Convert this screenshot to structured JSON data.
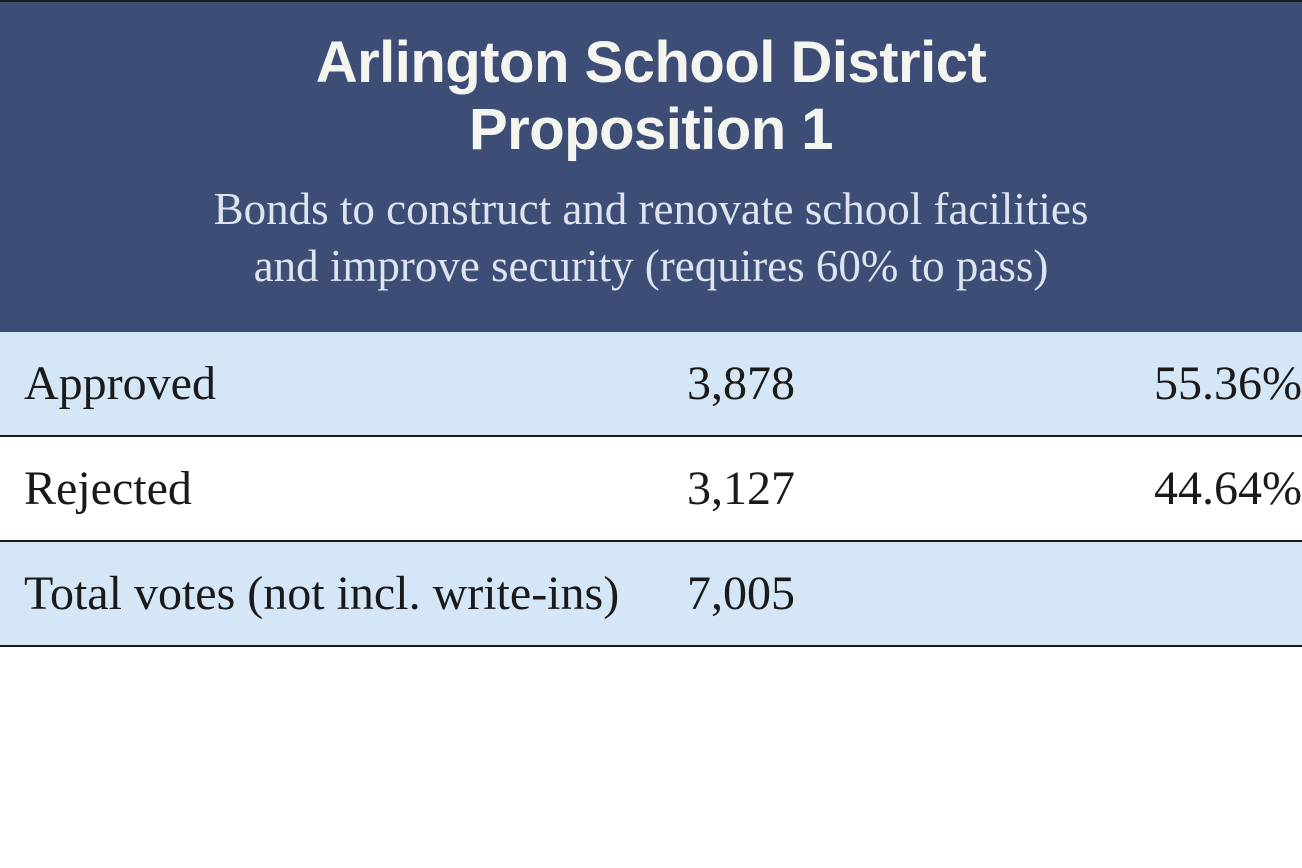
{
  "header": {
    "title_line1": "Arlington School District",
    "title_line2": "Proposition 1",
    "subtitle_line1": "Bonds to construct and renovate school facilities",
    "subtitle_line2": "and improve security (requires 60% to pass)"
  },
  "table": {
    "rows": [
      {
        "label": "Approved",
        "count": "3,878",
        "percent": "55.36%",
        "background": "alt"
      },
      {
        "label": "Rejected",
        "count": "3,127",
        "percent": "44.64%",
        "background": "white"
      },
      {
        "label": "Total votes (not incl. write-ins)",
        "count": "7,005",
        "percent": "",
        "background": "alt"
      }
    ]
  },
  "styling": {
    "header_bg": "#3d4d75",
    "alt_row_bg": "#d5e6f7",
    "white_row_bg": "#ffffff",
    "border_color": "#1a1a1a",
    "title_color": "#f5f5f0",
    "subtitle_color": "#dde4ef",
    "cell_text_color": "#1a1a1a",
    "title_fontsize": 58,
    "subtitle_fontsize": 45,
    "cell_fontsize": 48,
    "title_font": "Helvetica Neue, Arial, sans-serif",
    "body_font": "Georgia, Times New Roman, serif"
  }
}
